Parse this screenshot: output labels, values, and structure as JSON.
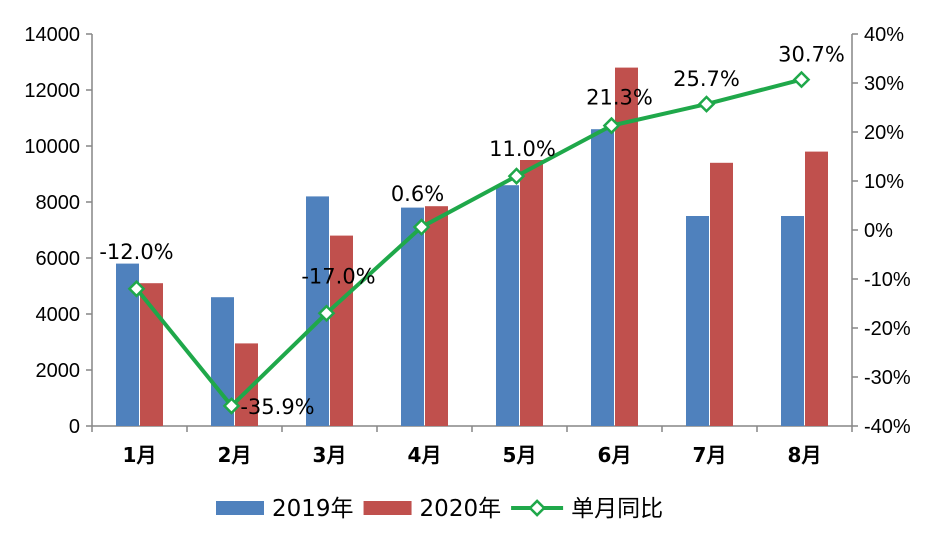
{
  "chart_data": {
    "type": "bar",
    "categories": [
      "1月",
      "2月",
      "3月",
      "4月",
      "5月",
      "6月",
      "7月",
      "8月"
    ],
    "series": [
      {
        "name": "2019年",
        "type": "bar",
        "axis": "left",
        "color": "#4f81bd",
        "values": [
          5800,
          4600,
          8200,
          7800,
          8600,
          10600,
          7500,
          7500
        ]
      },
      {
        "name": "2020年",
        "type": "bar",
        "axis": "left",
        "color": "#c0504d",
        "values": [
          5100,
          2950,
          6800,
          7850,
          9500,
          12800,
          9400,
          9800
        ]
      },
      {
        "name": "单月同比",
        "type": "line",
        "axis": "right",
        "color": "#1fa84a",
        "values": [
          -12.0,
          -35.9,
          -17.0,
          0.6,
          11.0,
          21.3,
          25.7,
          30.7
        ],
        "labels": [
          "-12.0%",
          "-35.9%",
          "-17.0%",
          "0.6%",
          "11.0%",
          "21.3%",
          "25.7%",
          "30.7%"
        ]
      }
    ],
    "y_left": {
      "min": 0,
      "max": 14000,
      "ticks": [
        "0",
        "2000",
        "4000",
        "6000",
        "8000",
        "10000",
        "12000",
        "14000"
      ]
    },
    "y_right": {
      "min": -40,
      "max": 40,
      "ticks": [
        "-40%",
        "-30%",
        "-20%",
        "-10%",
        "0%",
        "10%",
        "20%",
        "30%",
        "40%"
      ]
    },
    "grid": false,
    "legend_position": "bottom"
  }
}
